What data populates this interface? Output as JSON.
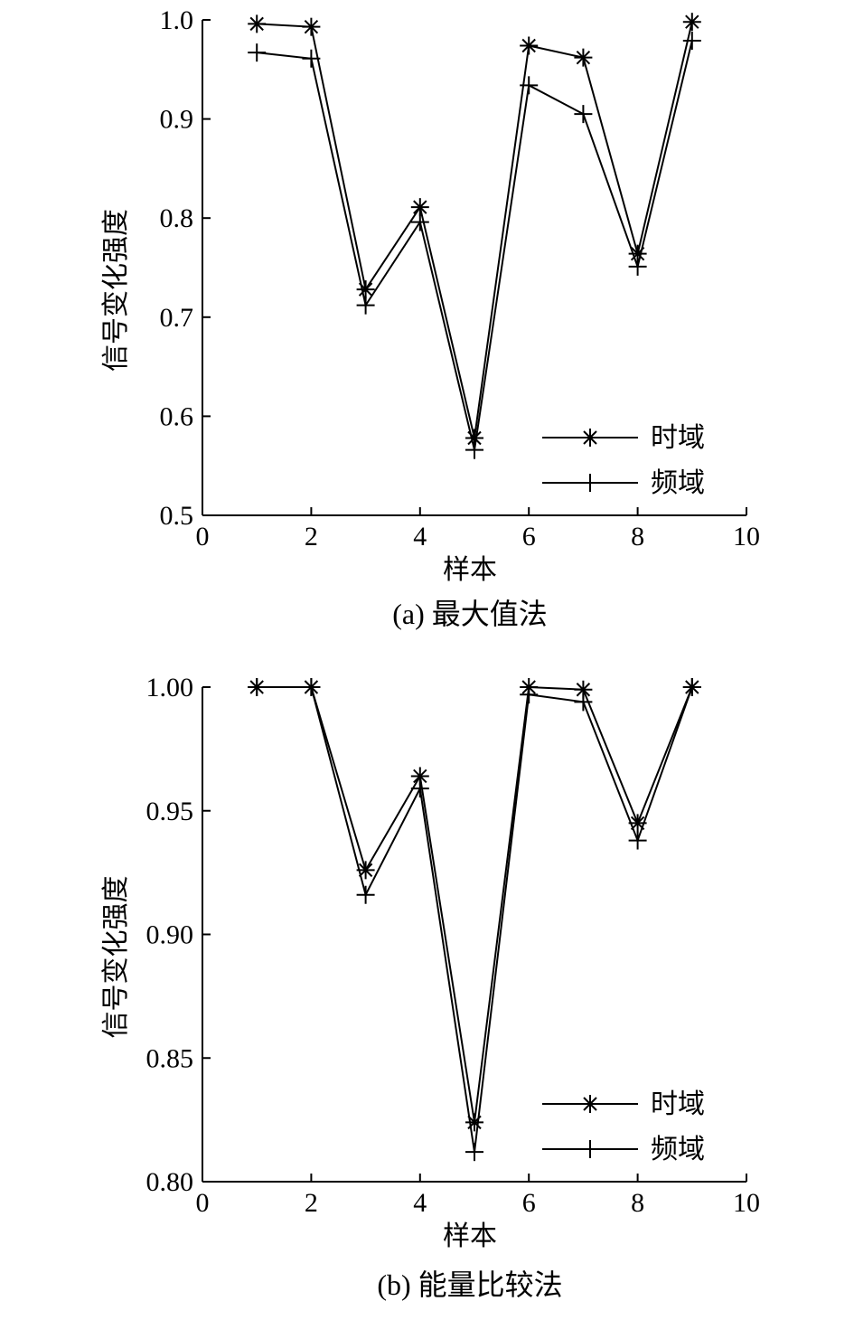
{
  "chart_data": [
    {
      "type": "line",
      "caption": "(a) 最大值法",
      "xlabel": "样本",
      "ylabel": "信号变化强度",
      "xlim": [
        0,
        10
      ],
      "ylim": [
        0.5,
        1.0
      ],
      "xticks": [
        0,
        2,
        4,
        6,
        8,
        10
      ],
      "yticks": [
        0.5,
        0.6,
        0.7,
        0.8,
        0.9,
        1.0
      ],
      "ytick_labels": [
        "0.5",
        "0.6",
        "0.7",
        "0.8",
        "0.9",
        "1.0"
      ],
      "legend_position": "lower-right",
      "grid": false,
      "x": [
        1,
        2,
        3,
        4,
        5,
        6,
        7,
        8,
        9
      ],
      "series": [
        {
          "name": "时域",
          "marker": "asterisk",
          "values": [
            0.996,
            0.993,
            0.728,
            0.811,
            0.578,
            0.974,
            0.962,
            0.764,
            0.998
          ]
        },
        {
          "name": "频域",
          "marker": "plus",
          "values": [
            0.967,
            0.961,
            0.712,
            0.796,
            0.566,
            0.934,
            0.905,
            0.751,
            0.979
          ]
        }
      ]
    },
    {
      "type": "line",
      "caption": "(b) 能量比较法",
      "xlabel": "样本",
      "ylabel": "信号变化强度",
      "xlim": [
        0,
        10
      ],
      "ylim": [
        0.8,
        1.0
      ],
      "xticks": [
        0,
        2,
        4,
        6,
        8,
        10
      ],
      "yticks": [
        0.8,
        0.85,
        0.9,
        0.95,
        1.0
      ],
      "ytick_labels": [
        "0.80",
        "0.85",
        "0.90",
        "0.95",
        "1.00"
      ],
      "legend_position": "lower-right",
      "grid": false,
      "x": [
        1,
        2,
        3,
        4,
        5,
        6,
        7,
        8,
        9
      ],
      "series": [
        {
          "name": "时域",
          "marker": "asterisk",
          "values": [
            1.0,
            1.0,
            0.926,
            0.964,
            0.824,
            1.0,
            0.999,
            0.945,
            1.0
          ]
        },
        {
          "name": "频域",
          "marker": "plus",
          "values": [
            1.0,
            1.0,
            0.916,
            0.959,
            0.812,
            0.997,
            0.994,
            0.938,
            1.0
          ]
        }
      ]
    }
  ]
}
